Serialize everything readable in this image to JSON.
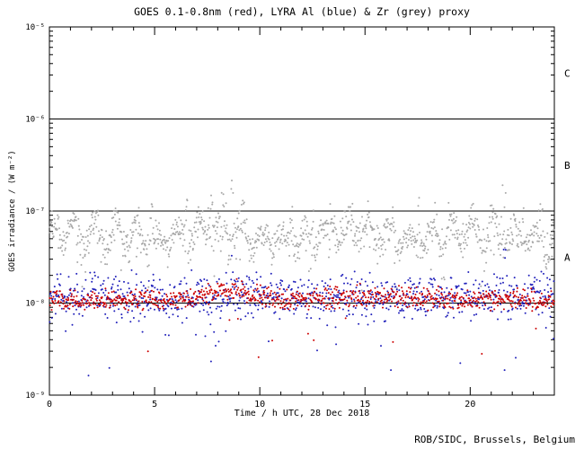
{
  "header": {
    "title": "GOES 0.1-0.8nm (red), LYRA Al (blue) & Zr (grey) proxy"
  },
  "footer": {
    "credit": "ROB/SIDC, Brussels, Belgium"
  },
  "colors": {
    "background": "#ffffff",
    "axis": "#000000",
    "goes_red": "#cc0000",
    "lyra_al_blue": "#2222bb",
    "lyra_zr_grey": "#a8a8a8"
  },
  "chart_data": {
    "type": "scatter",
    "title": "GOES 0.1-0.8nm (red), LYRA Al (blue) & Zr (grey) proxy",
    "xlabel": "Time / h UTC, 28 Dec 2018",
    "ylabel": "GOES irradiance / (W m⁻²)",
    "xlim": [
      0,
      24
    ],
    "x_major_ticks": [
      0,
      5,
      10,
      15,
      20
    ],
    "x_minor_step": 1,
    "ylim_log10": [
      -9,
      -5
    ],
    "y_ticks": [
      {
        "log10": -5,
        "label": "10⁻⁵"
      },
      {
        "log10": -6,
        "label": "10⁻⁶"
      },
      {
        "log10": -7,
        "label": "10⁻⁷"
      },
      {
        "log10": -8,
        "label": "10⁻⁸"
      },
      {
        "log10": -9,
        "label": "10⁻⁹"
      }
    ],
    "hlines_log10": [
      -6,
      -7,
      -8
    ],
    "class_labels": [
      {
        "label": "C",
        "log10": -5.5
      },
      {
        "label": "B",
        "log10": -6.5
      },
      {
        "label": "A",
        "log10": -7.5
      }
    ],
    "grid": false,
    "legend_position": "encoded-in-title",
    "series": [
      {
        "name": "LYRA Zr proxy",
        "color": "#a8a8a8",
        "seed": 1234,
        "n": 1150,
        "base_log10": -7.28,
        "noise_sd": 0.09,
        "dot_radius": 1,
        "wave": {
          "amp": 0.1,
          "period": 1.0,
          "amp2": 0.05,
          "period2": 6.3,
          "phase": 0.7
        },
        "low_outliers": {
          "p": 0.05,
          "depth": 0.45
        },
        "spikes": [
          {
            "x": 0.35,
            "peak_log10": -7.02
          },
          {
            "x": 1.2,
            "peak_log10": -7.05
          },
          {
            "x": 2.25,
            "peak_log10": -6.95
          },
          {
            "x": 3.2,
            "peak_log10": -7.0
          },
          {
            "x": 4.15,
            "peak_log10": -6.9
          },
          {
            "x": 4.85,
            "peak_log10": -6.8
          },
          {
            "x": 5.6,
            "peak_log10": -6.92
          },
          {
            "x": 6.45,
            "peak_log10": -6.85
          },
          {
            "x": 7.1,
            "peak_log10": -6.9
          },
          {
            "x": 7.65,
            "peak_log10": -6.8
          },
          {
            "x": 8.3,
            "peak_log10": -6.78
          },
          {
            "x": 8.75,
            "peak_log10": -6.6
          },
          {
            "x": 9.25,
            "peak_log10": -6.88
          },
          {
            "x": 10.4,
            "peak_log10": -6.95
          },
          {
            "x": 11.5,
            "peak_log10": -6.92
          },
          {
            "x": 12.45,
            "peak_log10": -6.95
          },
          {
            "x": 13.45,
            "peak_log10": -6.88
          },
          {
            "x": 14.3,
            "peak_log10": -6.92
          },
          {
            "x": 15.25,
            "peak_log10": -6.82
          },
          {
            "x": 16.3,
            "peak_log10": -6.92
          },
          {
            "x": 17.5,
            "peak_log10": -6.8
          },
          {
            "x": 18.35,
            "peak_log10": -6.88
          },
          {
            "x": 19.0,
            "peak_log10": -6.75
          },
          {
            "x": 20.1,
            "peak_log10": -6.92
          },
          {
            "x": 21.0,
            "peak_log10": -6.9
          },
          {
            "x": 21.6,
            "peak_log10": -6.68
          },
          {
            "x": 22.45,
            "peak_log10": -6.92
          },
          {
            "x": 23.35,
            "peak_log10": -6.82
          }
        ]
      },
      {
        "name": "LYRA Al proxy",
        "color": "#2222bb",
        "seed": 777,
        "n": 950,
        "base_log10": -7.93,
        "noise_sd": 0.12,
        "dot_radius": 1,
        "low_outliers": {
          "p": 0.04,
          "depth": 0.65
        },
        "spikes": [
          {
            "x": 8.75,
            "peak_log10": -7.45,
            "width": 0.1
          },
          {
            "x": 21.6,
            "peak_log10": -7.4,
            "width": 0.1
          }
        ]
      },
      {
        "name": "GOES 0.1-0.8nm",
        "color": "#cc0000",
        "seed": 4242,
        "n": 950,
        "base_log10": -7.97,
        "noise_sd": 0.055,
        "dot_radius": 1,
        "humps": [
          {
            "center": 8.3,
            "amp": 0.12,
            "width": 1.0
          },
          {
            "center": 15.3,
            "amp": 0.05,
            "width": 2.0
          }
        ],
        "low_outliers": {
          "p": 0.02,
          "depth": 0.5
        }
      }
    ]
  }
}
